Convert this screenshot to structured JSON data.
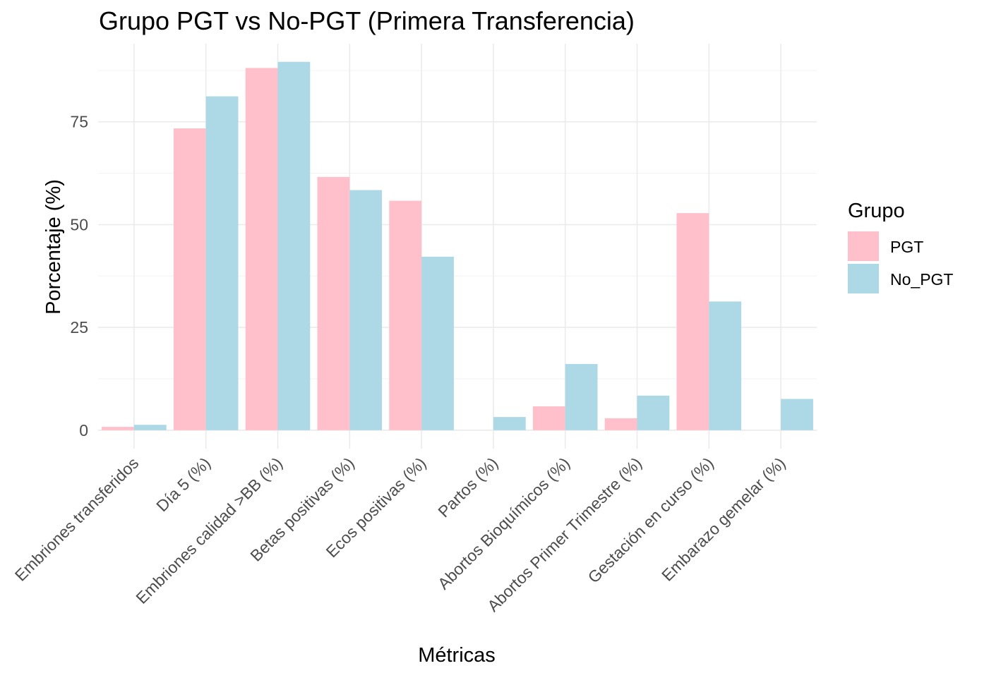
{
  "chart_data": {
    "type": "bar",
    "title": "Grupo PGT vs No-PGT (Primera Transferencia)",
    "xlabel": "Métricas",
    "ylabel": "Porcentaje (%)",
    "categories": [
      "Embriones transferidos",
      "Día 5 (%)",
      "Embriones calidad >BB (%)",
      "Betas positivas (%)",
      "Ecos positivas (%)",
      "Partos (%)",
      "Abortos Bioquímicos (%)",
      "Abortos Primer Trimestre (%)",
      "Gestación en curso (%)",
      "Embarazo gemelar (%)"
    ],
    "series": [
      {
        "name": "PGT",
        "color": "#FFC0CB",
        "values": [
          0.8,
          73.4,
          88.1,
          61.6,
          55.8,
          0,
          5.8,
          2.9,
          52.8,
          0
        ]
      },
      {
        "name": "No_PGT",
        "color": "#ADD8E6",
        "values": [
          1.3,
          81.2,
          89.6,
          58.4,
          42.2,
          3.2,
          16.1,
          8.4,
          31.3,
          7.6
        ]
      }
    ],
    "yticks": [
      0,
      25,
      50,
      75
    ],
    "ylim": [
      -4.5,
      94
    ],
    "grid": true,
    "legend": {
      "title": "Grupo",
      "position": "right"
    }
  }
}
